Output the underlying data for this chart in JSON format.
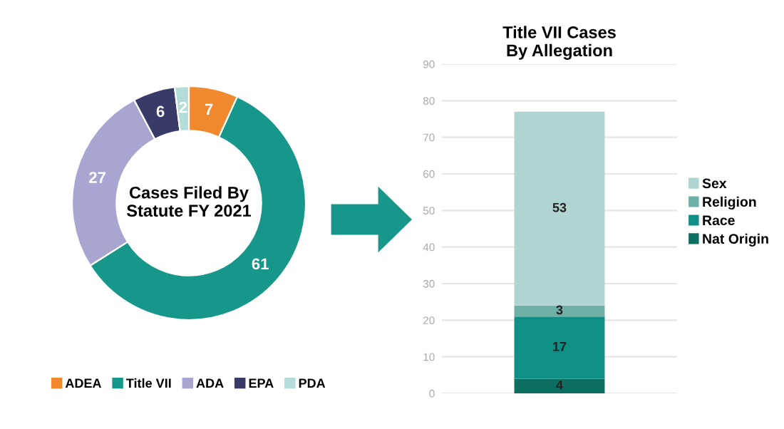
{
  "chart_data": [
    {
      "type": "donut",
      "title": "Cases Filed By\nStatute FY 2021",
      "categories": [
        "ADEA",
        "Title VII",
        "ADA",
        "EPA",
        "PDA"
      ],
      "values": [
        7,
        61,
        27,
        6,
        2
      ],
      "colors": [
        "#f0892e",
        "#16978a",
        "#a8a6d0",
        "#383a67",
        "#b4dcd8"
      ],
      "data_labels": true,
      "legend": "bottom"
    },
    {
      "type": "bar",
      "title": "Title VII Cases\nBy Allegation",
      "categories": [
        null
      ],
      "stacked": true,
      "series": [
        {
          "name": "Nat Origin",
          "color": "#0d6f62",
          "values": [
            4
          ]
        },
        {
          "name": "Race",
          "color": "#109085",
          "values": [
            17
          ]
        },
        {
          "name": "Religion",
          "color": "#6fb0a6",
          "values": [
            3
          ]
        },
        {
          "name": "Sex",
          "color": "#b0d4d0",
          "values": [
            53
          ]
        }
      ],
      "ylim": [
        0,
        90
      ],
      "yticks": [
        0,
        10,
        20,
        30,
        40,
        50,
        60,
        70,
        80,
        90
      ],
      "grid": "y",
      "data_labels": true,
      "legend": "right"
    }
  ]
}
